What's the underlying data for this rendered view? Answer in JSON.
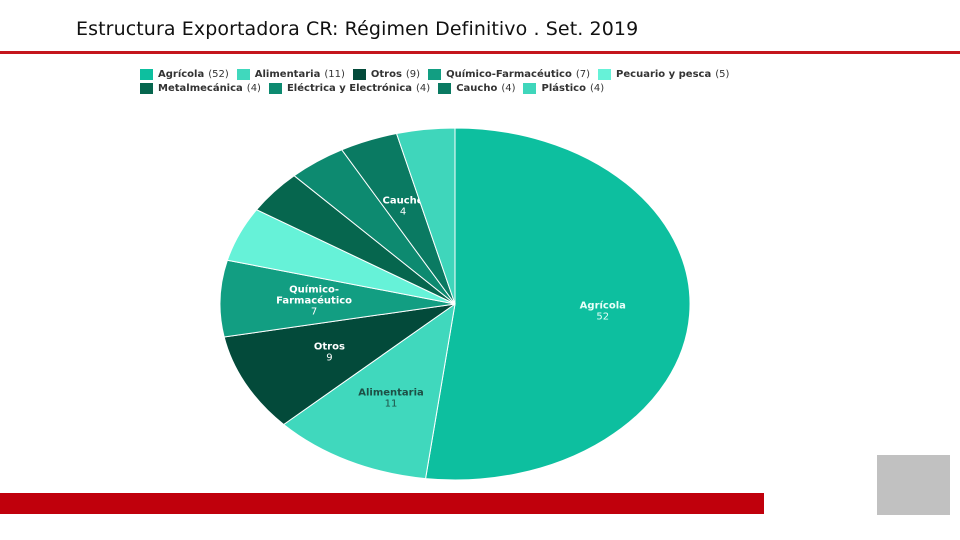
{
  "slide": {
    "title": "Estructura Exportadora CR:  Régimen Definitivo . Set. 2019"
  },
  "chart_data": {
    "type": "pie",
    "series": [
      {
        "name": "Agrícola",
        "value": 52,
        "legend_label": "Agrícola",
        "legend_count": "(52)",
        "slice_label_lines": [
          "Agrícola"
        ],
        "value_label": "52",
        "color": "#0dbf9f"
      },
      {
        "name": "Alimentaria",
        "value": 11,
        "legend_label": "Alimentaria",
        "legend_count": "(11)",
        "slice_label_lines": [
          "Alimentaria"
        ],
        "value_label": "11",
        "color": "#40d8bd"
      },
      {
        "name": "Otros",
        "value": 9,
        "legend_label": "Otros",
        "legend_count": "(9)",
        "slice_label_lines": [
          "Otros"
        ],
        "value_label": "9",
        "color": "#034a3a"
      },
      {
        "name": "Químico-Farmacéutico",
        "value": 7,
        "legend_label": "Químico-Farmacéutico",
        "legend_count": "(7)",
        "slice_label_lines": [
          "Químico-",
          "Farmacéutico"
        ],
        "value_label": "7",
        "color": "#129e82"
      },
      {
        "name": "Pecuario y pesca",
        "value": 5,
        "legend_label": "Pecuario y pesca",
        "legend_count": "(5)",
        "slice_label_lines": [],
        "value_label": "",
        "color": "#66f2d8"
      },
      {
        "name": "Metalmecánica",
        "value": 4,
        "legend_label": "Metalmecánica",
        "legend_count": "(4)",
        "slice_label_lines": [],
        "value_label": "",
        "color": "#06664e"
      },
      {
        "name": "Eléctrica y Electrónica",
        "value": 4,
        "legend_label": "Eléctrica y Electrónica",
        "legend_count": "(4)",
        "slice_label_lines": [],
        "value_label": "",
        "color": "#0d8a70"
      },
      {
        "name": "Caucho",
        "value": 4,
        "legend_label": "Caucho",
        "legend_count": "(4)",
        "slice_label_lines": [
          "Caucho"
        ],
        "value_label": "4",
        "color": "#0a7a62"
      },
      {
        "name": "Plástico",
        "value": 4,
        "legend_label": "Plástico",
        "legend_count": "(4)",
        "slice_label_lines": [],
        "value_label": "",
        "color": "#3fd6bb"
      }
    ],
    "legend_placement": "top"
  }
}
